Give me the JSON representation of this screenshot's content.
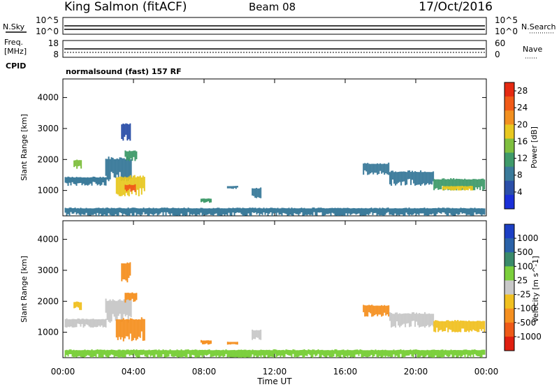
{
  "header": {
    "station": "King Salmon (fitACF)",
    "beam": "Beam 08",
    "date": "17/Oct/2016"
  },
  "side_labels": {
    "nsky": "N.Sky",
    "nsearch": "N.Search",
    "freq_line1": "Freq.",
    "freq_line2": "[MHz]",
    "cpid": "CPID",
    "nave": "Nave"
  },
  "top_panels": {
    "noise_ticks_left": [
      "10^5",
      "10^0"
    ],
    "noise_ticks_right": [
      "10^5",
      "10^0"
    ],
    "freq_ticks_left": [
      "18",
      "8"
    ],
    "nave_ticks_right": [
      "60",
      "0"
    ]
  },
  "cpid_text": "normalsound (fast) 157 RF",
  "colors": {
    "power_scale": [
      "#1a2fd8",
      "#2b4fa8",
      "#3a7a9a",
      "#3f9a6a",
      "#7fbf3f",
      "#e8c820",
      "#f29020",
      "#f05a18",
      "#e52a12"
    ],
    "velocity_scale": [
      "#1c3fc4",
      "#2a62a8",
      "#3a8a6a",
      "#7bcf3c",
      "#c8c8c8",
      "#f0c020",
      "#f59020",
      "#ee5a18",
      "#e01f10"
    ]
  },
  "chart_data": [
    {
      "type": "heatmap",
      "title": "",
      "xlabel": "",
      "ylabel": "Slant Range [km]",
      "x_ticks": [
        "00:00",
        "04:00",
        "08:00",
        "12:00",
        "16:00",
        "20:00",
        "00:00"
      ],
      "y_ticks": [
        "1000",
        "2000",
        "3000",
        "4000"
      ],
      "xlim_hours": [
        0,
        24
      ],
      "ylim_km": [
        180,
        4600
      ],
      "colorbar": {
        "label": "Power [dB]",
        "ticks": [
          "4",
          "8",
          "12",
          "16",
          "20",
          "24",
          "28"
        ],
        "range": [
          0,
          30
        ]
      },
      "regions": [
        {
          "t0": 0.1,
          "t1": 2.4,
          "r0": 1150,
          "r1": 1450,
          "value": 9
        },
        {
          "t0": 0.6,
          "t1": 1.0,
          "r0": 1700,
          "r1": 2000,
          "value": 14
        },
        {
          "t0": 2.4,
          "t1": 3.9,
          "r0": 1300,
          "r1": 2100,
          "value": 8
        },
        {
          "t0": 3.5,
          "t1": 4.2,
          "r0": 1950,
          "r1": 2300,
          "value": 13
        },
        {
          "t0": 3.0,
          "t1": 4.6,
          "r0": 800,
          "r1": 1500,
          "value": 18
        },
        {
          "t0": 3.5,
          "t1": 4.1,
          "r0": 950,
          "r1": 1200,
          "value": 26
        },
        {
          "t0": 3.3,
          "t1": 3.8,
          "r0": 2600,
          "r1": 3200,
          "value": 5
        },
        {
          "t0": 7.8,
          "t1": 8.4,
          "r0": 600,
          "r1": 750,
          "value": 10
        },
        {
          "t0": 9.3,
          "t1": 9.9,
          "r0": 1050,
          "r1": 1150,
          "value": 7
        },
        {
          "t0": 10.7,
          "t1": 11.2,
          "r0": 750,
          "r1": 1100,
          "value": 9
        },
        {
          "t0": 17.0,
          "t1": 18.5,
          "r0": 1500,
          "r1": 1900,
          "value": 8
        },
        {
          "t0": 18.5,
          "t1": 21.0,
          "r0": 1150,
          "r1": 1650,
          "value": 9
        },
        {
          "t0": 21.0,
          "t1": 23.9,
          "r0": 1000,
          "r1": 1400,
          "value": 11
        },
        {
          "t0": 21.5,
          "t1": 23.2,
          "r0": 1000,
          "r1": 1150,
          "value": 17
        },
        {
          "t0": 0.1,
          "t1": 23.9,
          "r0": 180,
          "r1": 450,
          "value": 8
        }
      ]
    },
    {
      "type": "heatmap",
      "title": "",
      "xlabel": "Time UT",
      "ylabel": "Slant Range [km]",
      "x_ticks": [
        "00:00",
        "04:00",
        "08:00",
        "12:00",
        "16:00",
        "20:00",
        "00:00"
      ],
      "y_ticks": [
        "1000",
        "2000",
        "3000",
        "4000"
      ],
      "xlim_hours": [
        0,
        24
      ],
      "ylim_km": [
        180,
        4600
      ],
      "colorbar": {
        "label": "Velocity [m s^-1]",
        "ticks": [
          "1000",
          "500",
          "100",
          "25",
          "-25",
          "-100",
          "-500",
          "-1000"
        ]
      },
      "regions": [
        {
          "t0": 0.1,
          "t1": 2.4,
          "r0": 1150,
          "r1": 1450,
          "value": 0
        },
        {
          "t0": 0.6,
          "t1": 1.0,
          "r0": 1700,
          "r1": 2000,
          "value": -80
        },
        {
          "t0": 2.4,
          "t1": 3.9,
          "r0": 1300,
          "r1": 2100,
          "value": 0
        },
        {
          "t0": 3.5,
          "t1": 4.2,
          "r0": 1950,
          "r1": 2300,
          "value": -150
        },
        {
          "t0": 3.0,
          "t1": 4.6,
          "r0": 700,
          "r1": 1500,
          "value": -450
        },
        {
          "t0": 3.3,
          "t1": 3.8,
          "r0": 2600,
          "r1": 3300,
          "value": -300
        },
        {
          "t0": 7.8,
          "t1": 8.4,
          "r0": 600,
          "r1": 750,
          "value": -400
        },
        {
          "t0": 9.3,
          "t1": 9.9,
          "r0": 600,
          "r1": 700,
          "value": -400
        },
        {
          "t0": 10.7,
          "t1": 11.2,
          "r0": 750,
          "r1": 1100,
          "value": 0
        },
        {
          "t0": 17.0,
          "t1": 18.5,
          "r0": 1500,
          "r1": 1900,
          "value": -150
        },
        {
          "t0": 18.5,
          "t1": 21.0,
          "r0": 1150,
          "r1": 1650,
          "value": 0
        },
        {
          "t0": 21.0,
          "t1": 23.9,
          "r0": 1000,
          "r1": 1400,
          "value": -50
        },
        {
          "t0": 0.1,
          "t1": 23.9,
          "r0": 180,
          "r1": 450,
          "value": 60
        }
      ]
    }
  ]
}
